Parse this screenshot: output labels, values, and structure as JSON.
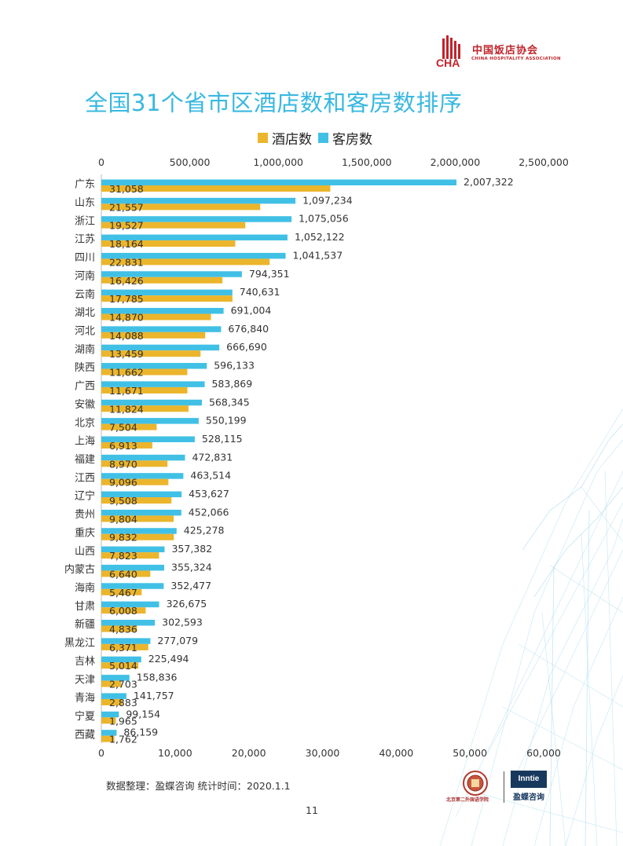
{
  "header": {
    "org_name": "中国饭店协会",
    "org_name_en": "CHINA HOSPITALITY ASSOCIATION",
    "logo_letters": "CHA"
  },
  "legend": {
    "hotels": "酒店数",
    "rooms": "客房数"
  },
  "colors": {
    "hotels": "#ebb52c",
    "rooms": "#41c0e6",
    "title": "#39b8e0",
    "brand": "#c0242b"
  },
  "chart_data": {
    "type": "bar",
    "orientation": "horizontal",
    "title": "全国31个省市区酒店数和客房数排序",
    "categories": [
      "广东",
      "山东",
      "浙江",
      "江苏",
      "四川",
      "河南",
      "云南",
      "湖北",
      "河北",
      "湖南",
      "陕西",
      "广西",
      "安徽",
      "北京",
      "上海",
      "福建",
      "江西",
      "辽宁",
      "贵州",
      "重庆",
      "山西",
      "内蒙古",
      "海南",
      "甘肃",
      "新疆",
      "黑龙江",
      "吉林",
      "天津",
      "青海",
      "宁夏",
      "西藏"
    ],
    "series": [
      {
        "name": "客房数",
        "axis": "top",
        "xlim": [
          0,
          2500000
        ],
        "values": [
          2007322,
          1097234,
          1075056,
          1052122,
          1041537,
          794351,
          740631,
          691004,
          676840,
          666690,
          596133,
          583869,
          568345,
          550199,
          528115,
          472831,
          463514,
          453627,
          452066,
          425278,
          357382,
          355324,
          352477,
          326675,
          302593,
          277079,
          225494,
          158836,
          141757,
          99154,
          86159
        ],
        "labels": [
          "2,007,322",
          "1,097,234",
          "1,075,056",
          "1,052,122",
          "1,041,537",
          "794,351",
          "740,631",
          "691,004",
          "676,840",
          "666,690",
          "596,133",
          "583,869",
          "568,345",
          "550,199",
          "528,115",
          "472,831",
          "463,514",
          "453,627",
          "452,066",
          "425,278",
          "357,382",
          "355,324",
          "352,477",
          "326,675",
          "302,593",
          "277,079",
          "225,494",
          "158,836",
          "141,757",
          "99,154",
          "86,159"
        ]
      },
      {
        "name": "酒店数",
        "axis": "bottom",
        "xlim": [
          0,
          60000
        ],
        "values": [
          31058,
          21557,
          19527,
          18164,
          22831,
          16426,
          17785,
          14870,
          14088,
          13459,
          11662,
          11671,
          11824,
          7504,
          6913,
          8970,
          9096,
          9508,
          9804,
          9832,
          7823,
          6640,
          5467,
          6008,
          4836,
          6371,
          5014,
          2703,
          2883,
          1965,
          1762
        ],
        "labels": [
          "31,058",
          "21,557",
          "19,527",
          "18,164",
          "22,831",
          "16,426",
          "17,785",
          "14,870",
          "14,088",
          "13,459",
          "11,662",
          "11,671",
          "11,824",
          "7,504",
          "6,913",
          "8,970",
          "9,096",
          "9,508",
          "9,804",
          "9,832",
          "7,823",
          "6,640",
          "5,467",
          "6,008",
          "4,836",
          "6,371",
          "5,014",
          "2,703",
          "2,883",
          "1,965",
          "1,762"
        ]
      }
    ],
    "top_axis_ticks": [
      "0",
      "500,000",
      "1,000,000",
      "1,500,000",
      "2,000,000",
      "2,500,000"
    ],
    "bottom_axis_ticks": [
      "0",
      "10,000",
      "20,000",
      "30,000",
      "40,000",
      "50,000",
      "60,000"
    ]
  },
  "footer": {
    "source": "数据整理：盈蝶咨询  统计时间：2020.1.1",
    "page_number": "11",
    "partner_logo": "Inntie",
    "partner_name": "盈蝶咨询",
    "academy_name": "北京第二外国语学院"
  }
}
